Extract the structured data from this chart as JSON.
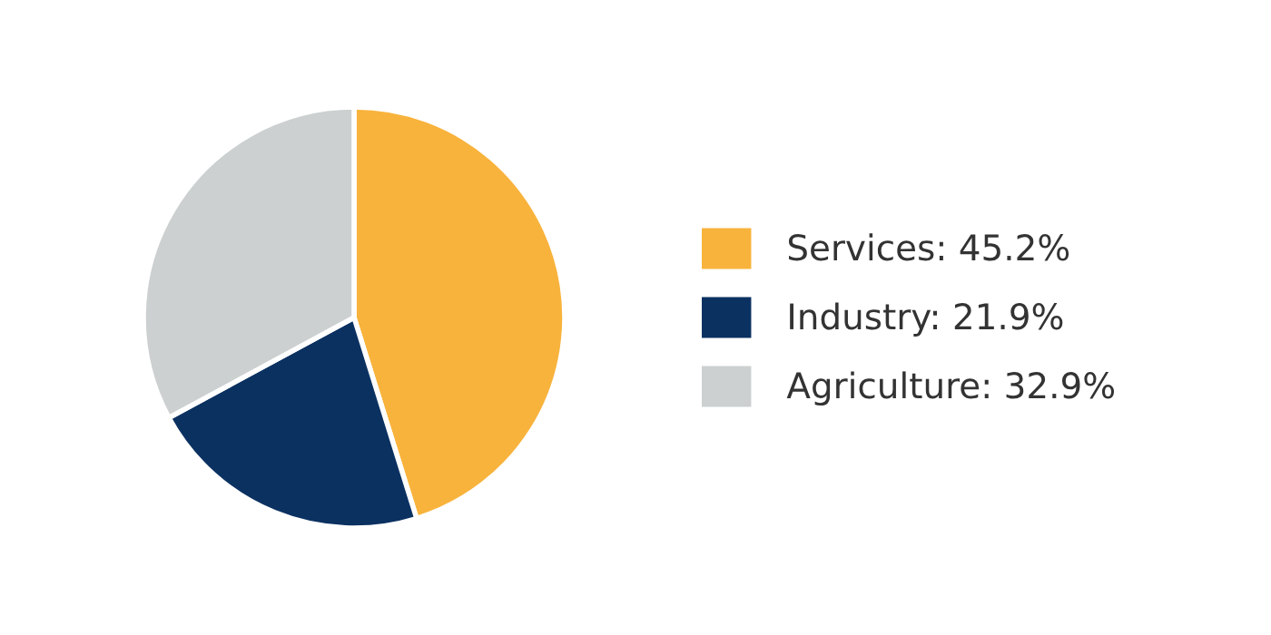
{
  "chart_data": {
    "type": "pie",
    "categories": [
      "Services: 45.2%",
      "Industry: 21.9%",
      "Agriculture: 32.9%"
    ],
    "values": [
      45.2,
      21.9,
      32.9
    ],
    "colors": [
      "#f8b33c",
      "#0b3161",
      "#ccd0d1"
    ],
    "legend": "right"
  }
}
